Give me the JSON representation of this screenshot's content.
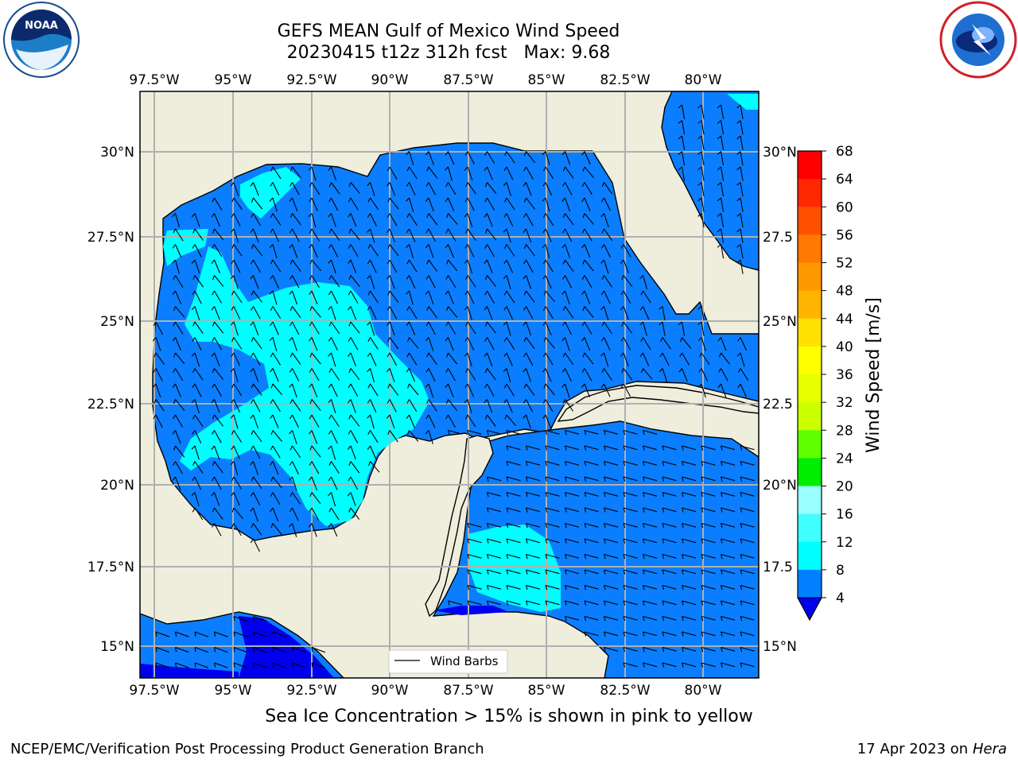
{
  "header": {
    "title": "GEFS MEAN Gulf of Mexico Wind Speed",
    "subtitle": "20230415 t12z 312h fcst   Max: 9.68"
  },
  "logos": {
    "noaa": {
      "text": "NOAA",
      "ring_text": "NATIONAL OCEANIC AND ATMOSPHERIC ADMINISTRATION · U.S. DEPARTMENT OF COMMERCE"
    },
    "nws": {
      "ring_text": "NATIONAL WEATHER SERVICE"
    }
  },
  "map": {
    "lon_labels": [
      "97.5°W",
      "95°W",
      "92.5°W",
      "90°W",
      "87.5°W",
      "85°W",
      "82.5°W",
      "80°W"
    ],
    "lat_labels_left": [
      "30°N",
      "27.5°N",
      "25°N",
      "22.5°N",
      "20°N",
      "17.5°N",
      "15°N"
    ],
    "lat_labels_right": [
      "30°N",
      "27.5",
      "25°N",
      "22.5",
      "20°N",
      "17.5",
      "15°N"
    ],
    "legend_label": "Wind Barbs",
    "colors": {
      "land": "#efeedd",
      "speed_4_8": "#0a7eff",
      "speed_8_12": "#00ffff",
      "speed_0_4": "#0000ee",
      "grid": "#b0b0b0"
    }
  },
  "colorbar": {
    "label": "Wind Speed [m/s]",
    "ticks": [
      "68",
      "64",
      "60",
      "56",
      "52",
      "48",
      "44",
      "40",
      "36",
      "32",
      "28",
      "24",
      "20",
      "16",
      "12",
      "8",
      "4"
    ],
    "colors": [
      "#ff0000",
      "#ff2800",
      "#ff5000",
      "#ff7800",
      "#ff9900",
      "#ffb400",
      "#ffe000",
      "#ffff00",
      "#e8ff00",
      "#ccff00",
      "#a0ff00",
      "#60ff00",
      "#00ee00",
      "#50ff70",
      "#99ffff",
      "#40ffff",
      "#00ffff",
      "#0080ff",
      "#0000ee"
    ]
  },
  "footer": {
    "note": "Sea Ice Concentration > 15% is shown in pink to yellow",
    "credit": "NCEP/EMC/Verification Post Processing Product Generation Branch",
    "date": "17 Apr 2023 on ",
    "host": "Hera"
  }
}
